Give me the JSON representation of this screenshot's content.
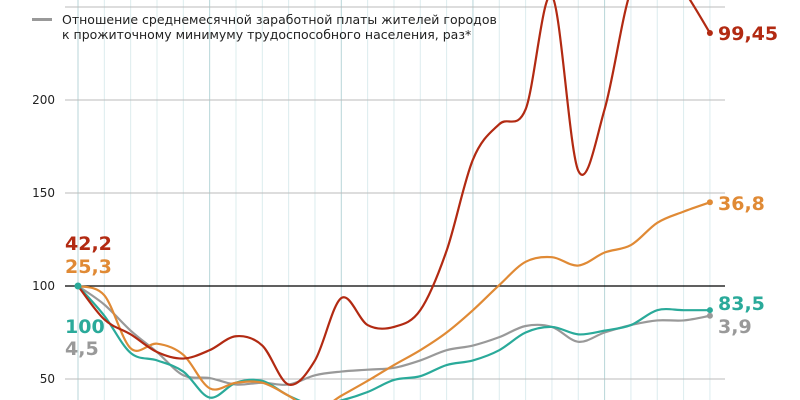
{
  "chart_data": {
    "type": "line",
    "title": "",
    "legend": [
      {
        "label_line1": "Отношение среднемесячной заработной платы жителей городов",
        "label_line2": "к прожиточному минимуму трудоспособного населения, раз*",
        "color": "#999999"
      }
    ],
    "ylim": [
      40,
      250
    ],
    "yticks": [
      "50",
      "100",
      "150",
      "200"
    ],
    "ytick_values": [
      50,
      100,
      150,
      200
    ],
    "x": [
      0,
      1,
      2,
      3,
      4,
      5,
      6,
      7,
      8,
      9,
      10,
      11,
      12,
      13,
      14,
      15,
      16,
      17,
      18,
      19,
      20,
      21,
      22,
      23,
      24
    ],
    "baseline": 100,
    "series": [
      {
        "name": "red",
        "color": "#b22a12",
        "end_label": "99,45",
        "start_label": "42,2",
        "values": [
          100,
          82,
          74,
          64.5,
          61,
          65.5,
          73,
          68,
          47,
          60,
          93.5,
          79,
          78,
          87,
          119,
          168,
          187,
          195,
          256,
          162,
          195,
          259,
          275,
          259,
          236
        ]
      },
      {
        "name": "orange",
        "color": "#e08a35",
        "end_label": "36,8",
        "start_label": "25,3",
        "values": [
          100,
          95,
          66.5,
          69,
          63,
          45,
          48,
          48,
          41,
          33,
          41,
          49,
          57.5,
          65.5,
          75,
          87,
          100.5,
          113,
          115.5,
          111,
          118,
          122,
          134,
          140,
          145
        ]
      },
      {
        "name": "teal",
        "color": "#2aaa9a",
        "end_label": "83,5",
        "start_label": "100",
        "values": [
          100,
          84,
          64,
          60,
          54,
          40,
          48,
          49,
          41,
          36,
          38.5,
          43,
          49.5,
          51.5,
          57.5,
          60,
          65.5,
          75,
          78,
          74,
          76,
          79,
          87,
          87,
          87
        ]
      },
      {
        "name": "gray",
        "color": "#999999",
        "end_label": "3,9",
        "start_label": "4,5",
        "values": [
          100,
          90,
          76,
          64.5,
          52,
          50.5,
          47,
          48,
          47,
          52,
          54,
          55,
          56,
          60,
          65.5,
          68,
          72.5,
          78.5,
          78,
          70,
          75,
          79,
          81.5,
          81.5,
          84
        ]
      }
    ]
  }
}
